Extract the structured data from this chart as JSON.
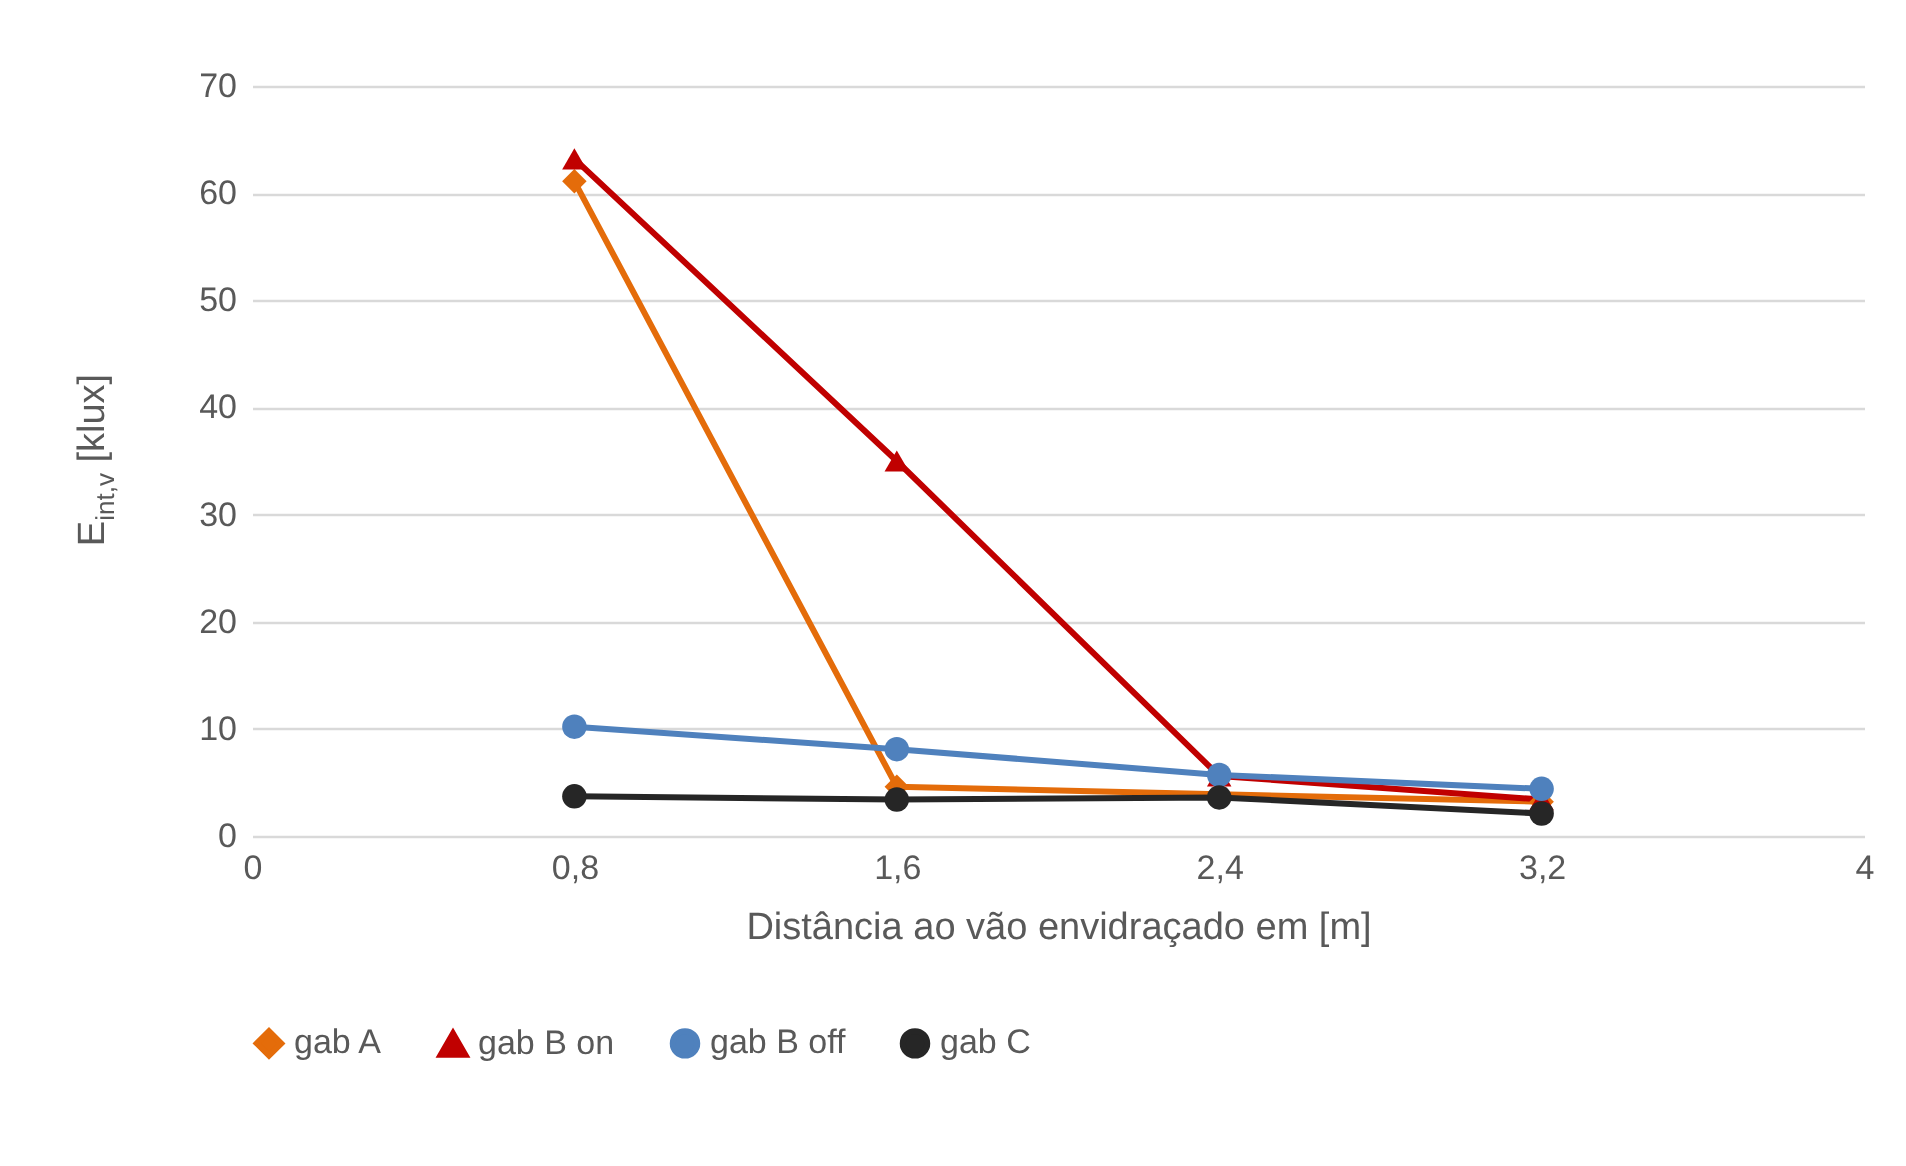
{
  "chart_data": {
    "type": "line",
    "xlabel": "Distância ao vão envidraçado em [m]",
    "ylabel": "E$_{int,v}$ [klux]",
    "x": [
      0.8,
      1.6,
      2.4,
      3.2
    ],
    "xlim": [
      0,
      4
    ],
    "xticks": [
      0,
      {
        "value": 0.8,
        "label": "0,8"
      },
      {
        "value": 1.6,
        "label": "1,6"
      },
      {
        "value": 2.4,
        "label": "2,4"
      },
      {
        "value": 3.2,
        "label": "3,2"
      },
      4
    ],
    "ylim": [
      0,
      70
    ],
    "yticks": [
      0,
      10,
      20,
      30,
      40,
      50,
      60,
      70
    ],
    "grid": "y",
    "legend": "bottom",
    "line_style": "solid",
    "series": [
      {
        "name": "gab A",
        "color": "#e46c0a",
        "marker": "diamond",
        "values": [
          61.1,
          4.6,
          3.9,
          3.2
        ]
      },
      {
        "name": "gab B on",
        "color": "#c00000",
        "marker": "triangle",
        "values": [
          63.2,
          35,
          5.6,
          3.4
        ]
      },
      {
        "name": "gab B off",
        "color": "#4f81bd",
        "marker": "circle",
        "values": [
          10.2,
          8.1,
          5.7,
          4.4
        ]
      },
      {
        "name": "gab C",
        "color": "#262626",
        "marker": "circle",
        "values": [
          3.7,
          3.4,
          3.6,
          2.1
        ]
      }
    ]
  }
}
